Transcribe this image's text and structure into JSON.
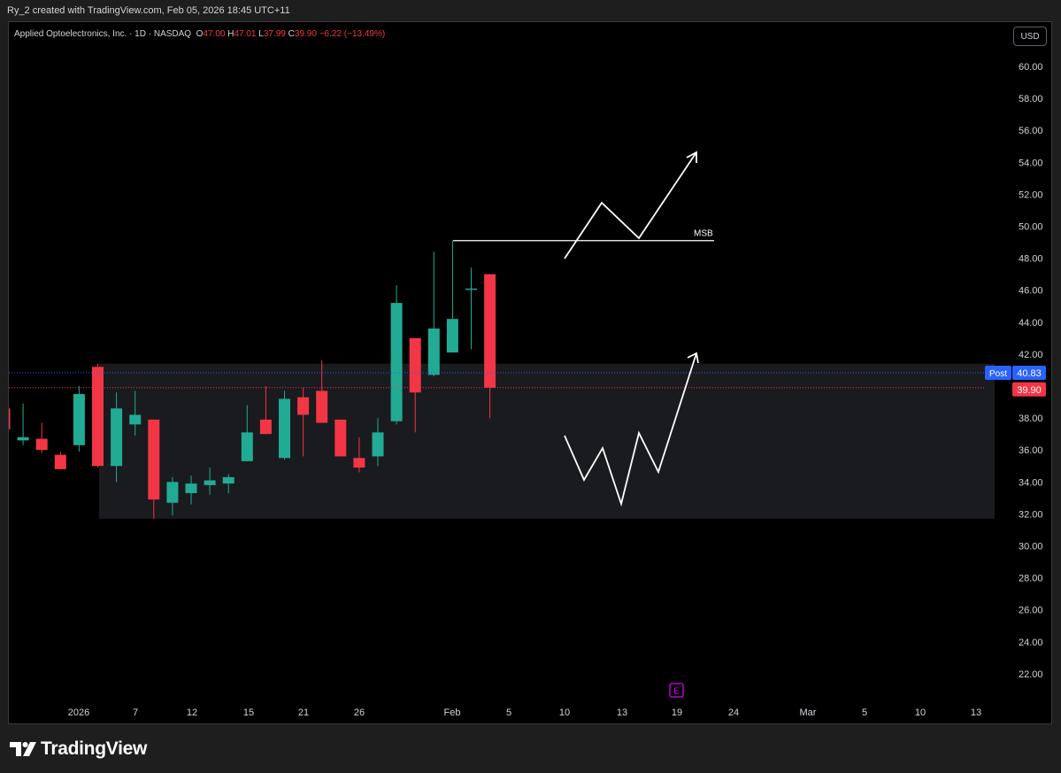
{
  "header": {
    "created_text": "Ry_2 created with TradingView.com, Feb 05, 2026 18:45 UTC+11"
  },
  "legend": {
    "symbol": "Applied Optoelectronics, Inc. · 1D · NASDAQ",
    "o_label": "O",
    "o_value": "47.00",
    "h_label": "H",
    "h_value": "47.01",
    "l_label": "L",
    "l_value": "37.99",
    "c_label": "C",
    "c_value": "39.90",
    "change": "−6.22 (−13.49%)"
  },
  "currency": "USD",
  "colors": {
    "up": "#22ab94",
    "down": "#f23645",
    "background": "#000000",
    "zone": "#1a1b1e",
    "post_badge": "#2962ff",
    "price_badge": "#f23645",
    "drawing": "#ffffff"
  },
  "chart_data": {
    "type": "candlestick",
    "y_ticks": [
      "60.00",
      "58.00",
      "56.00",
      "54.00",
      "52.00",
      "50.00",
      "48.00",
      "46.00",
      "44.00",
      "42.00",
      "40.00",
      "38.00",
      "36.00",
      "34.00",
      "32.00",
      "30.00",
      "28.00",
      "26.00",
      "24.00",
      "22.00"
    ],
    "ylim": [
      20.5,
      62.0
    ],
    "x_ticks": [
      "2026",
      "7",
      "12",
      "15",
      "21",
      "26",
      "Feb",
      "5",
      "10",
      "13",
      "19",
      "24",
      "Mar",
      "5",
      "10",
      "13"
    ],
    "candles": [
      {
        "o": 38.6,
        "h": 38.6,
        "l": 37.3,
        "c": 37.3
      },
      {
        "o": 36.6,
        "h": 38.9,
        "l": 36.3,
        "c": 36.8
      },
      {
        "o": 36.7,
        "h": 37.7,
        "l": 35.8,
        "c": 36.0
      },
      {
        "o": 35.7,
        "h": 35.9,
        "l": 34.8,
        "c": 34.8
      },
      {
        "o": 36.3,
        "h": 40.0,
        "l": 35.9,
        "c": 39.5
      },
      {
        "o": 41.2,
        "h": 41.4,
        "l": 34.9,
        "c": 35.0
      },
      {
        "o": 35.0,
        "h": 39.6,
        "l": 34.0,
        "c": 38.6
      },
      {
        "o": 37.6,
        "h": 39.7,
        "l": 36.9,
        "c": 38.2
      },
      {
        "o": 37.9,
        "h": 37.9,
        "l": 31.7,
        "c": 32.9
      },
      {
        "o": 32.7,
        "h": 34.3,
        "l": 31.9,
        "c": 34.0
      },
      {
        "o": 33.3,
        "h": 34.4,
        "l": 32.6,
        "c": 33.9
      },
      {
        "o": 33.8,
        "h": 34.9,
        "l": 33.2,
        "c": 34.1
      },
      {
        "o": 33.9,
        "h": 34.5,
        "l": 33.3,
        "c": 34.3
      },
      {
        "o": 35.3,
        "h": 38.8,
        "l": 35.3,
        "c": 37.1
      },
      {
        "o": 37.9,
        "h": 40.0,
        "l": 37.0,
        "c": 37.0
      },
      {
        "o": 35.5,
        "h": 39.7,
        "l": 35.4,
        "c": 39.2
      },
      {
        "o": 39.3,
        "h": 39.9,
        "l": 35.6,
        "c": 38.2
      },
      {
        "o": 39.7,
        "h": 41.6,
        "l": 37.7,
        "c": 37.7
      },
      {
        "o": 37.9,
        "h": 37.9,
        "l": 35.6,
        "c": 35.6
      },
      {
        "o": 35.5,
        "h": 36.8,
        "l": 34.6,
        "c": 34.9
      },
      {
        "o": 35.6,
        "h": 38.0,
        "l": 35.0,
        "c": 37.1
      },
      {
        "o": 37.8,
        "h": 46.3,
        "l": 37.6,
        "c": 45.2
      },
      {
        "o": 43.0,
        "h": 43.0,
        "l": 37.1,
        "c": 39.6
      },
      {
        "o": 40.7,
        "h": 48.4,
        "l": 40.6,
        "c": 43.6
      },
      {
        "o": 42.1,
        "h": 49.1,
        "l": 42.1,
        "c": 44.2
      },
      {
        "o": 46.1,
        "h": 47.4,
        "l": 42.3,
        "c": 46.1
      },
      {
        "o": 47.0,
        "h": 47.01,
        "l": 37.99,
        "c": 39.9
      }
    ],
    "zone": {
      "top": 41.4,
      "bottom": 31.7
    },
    "msb_label": "MSB",
    "msb_level": 49.1,
    "post_label": "Post",
    "post_price": "40.83",
    "last_price": "39.90"
  }
}
